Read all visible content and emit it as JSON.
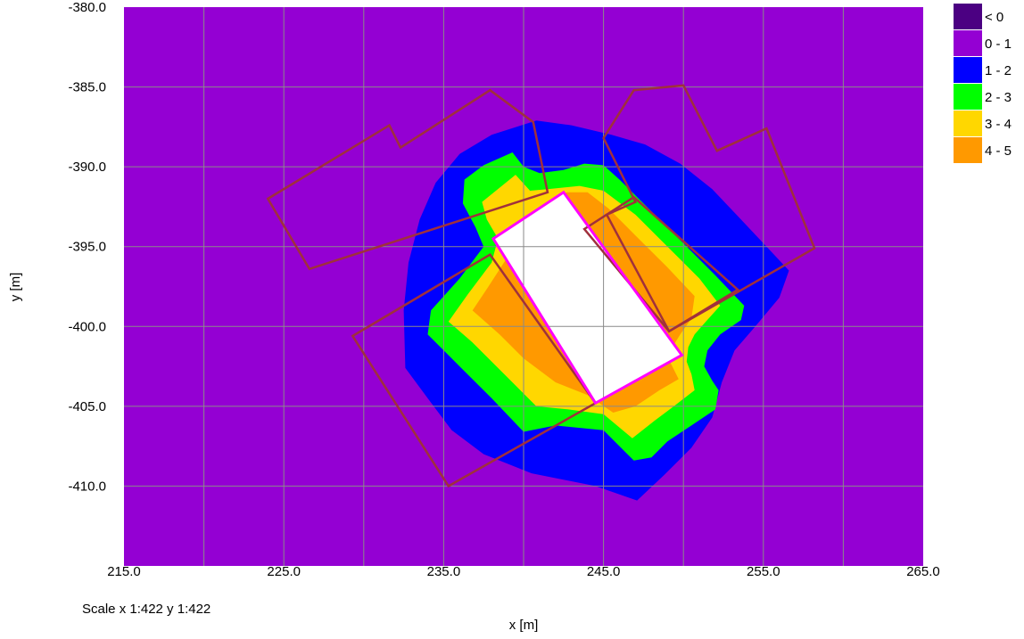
{
  "chart_data": {
    "type": "heatmap",
    "xlabel": "x [m]",
    "ylabel": "y [m]",
    "xlim": [
      215,
      265
    ],
    "ylim": [
      -415,
      -380
    ],
    "x_ticks": [
      "215.0",
      "225.0",
      "235.0",
      "245.0",
      "255.0",
      "265.0"
    ],
    "y_ticks": [
      "-380.0",
      "-385.0",
      "-390.0",
      "-395.0",
      "-400.0",
      "-405.0",
      "-410.0"
    ],
    "grid": true,
    "scale_note": "Scale x 1:422  y 1:422",
    "legend": [
      {
        "label": "< 0",
        "color": "#4b0082"
      },
      {
        "label": "0 - 1",
        "color": "#9400d3"
      },
      {
        "label": "1 - 2",
        "color": "#0000ff"
      },
      {
        "label": "2 - 3",
        "color": "#00ff00"
      },
      {
        "label": "3 - 4",
        "color": "#ffd700"
      },
      {
        "label": "4 - 5",
        "color": "#ff9900"
      }
    ],
    "background_color": "#9400d3",
    "zones": [
      {
        "label": "1 - 2",
        "color": "#0000ff",
        "points": [
          [
            240.8,
            -387.1
          ],
          [
            243.0,
            -387.4
          ],
          [
            245.5,
            -388.0
          ],
          [
            247.6,
            -388.6
          ],
          [
            249.8,
            -389.8
          ],
          [
            251.8,
            -391.4
          ],
          [
            253.6,
            -393.3
          ],
          [
            255.2,
            -395.0
          ],
          [
            256.6,
            -396.5
          ],
          [
            256.0,
            -398.2
          ],
          [
            254.5,
            -400.0
          ],
          [
            253.2,
            -401.5
          ],
          [
            252.4,
            -403.5
          ],
          [
            251.8,
            -405.7
          ],
          [
            250.5,
            -407.6
          ],
          [
            248.8,
            -409.3
          ],
          [
            247.1,
            -410.9
          ],
          [
            244.5,
            -410.0
          ],
          [
            240.5,
            -409.2
          ],
          [
            237.5,
            -408.0
          ],
          [
            235.5,
            -406.5
          ],
          [
            234.0,
            -404.5
          ],
          [
            232.6,
            -402.6
          ],
          [
            232.5,
            -399.0
          ],
          [
            232.8,
            -396.0
          ],
          [
            233.5,
            -393.3
          ],
          [
            234.5,
            -391.0
          ],
          [
            236.0,
            -389.2
          ],
          [
            238.0,
            -388.0
          ]
        ]
      },
      {
        "label": "2 - 3",
        "color": "#00ff00",
        "points": [
          [
            239.3,
            -389.1
          ],
          [
            240.0,
            -390.0
          ],
          [
            241.0,
            -390.4
          ],
          [
            242.5,
            -390.2
          ],
          [
            243.8,
            -389.8
          ],
          [
            245.0,
            -389.9
          ],
          [
            246.0,
            -390.8
          ],
          [
            248.0,
            -392.8
          ],
          [
            250.0,
            -394.8
          ],
          [
            252.0,
            -396.8
          ],
          [
            253.8,
            -398.7
          ],
          [
            253.6,
            -399.6
          ],
          [
            252.3,
            -400.5
          ],
          [
            251.5,
            -401.5
          ],
          [
            251.3,
            -402.5
          ],
          [
            251.8,
            -403.4
          ],
          [
            252.2,
            -404.0
          ],
          [
            252.0,
            -405.2
          ],
          [
            250.5,
            -406.2
          ],
          [
            249.0,
            -407.2
          ],
          [
            248.0,
            -408.2
          ],
          [
            246.9,
            -408.4
          ],
          [
            245.0,
            -406.5
          ],
          [
            242.0,
            -406.2
          ],
          [
            240.0,
            -406.6
          ],
          [
            238.0,
            -404.5
          ],
          [
            236.0,
            -402.5
          ],
          [
            234.0,
            -400.5
          ],
          [
            234.2,
            -399.0
          ],
          [
            236.0,
            -397.0
          ],
          [
            237.5,
            -395.0
          ],
          [
            237.0,
            -393.8
          ],
          [
            236.2,
            -392.3
          ],
          [
            236.3,
            -390.8
          ],
          [
            237.5,
            -389.9
          ]
        ]
      },
      {
        "label": "3 - 4",
        "color": "#ffd700",
        "points": [
          [
            239.5,
            -390.5
          ],
          [
            240.4,
            -391.5
          ],
          [
            241.5,
            -391.4
          ],
          [
            243.5,
            -391.2
          ],
          [
            245.0,
            -391.5
          ],
          [
            247.0,
            -393.0
          ],
          [
            249.0,
            -395.0
          ],
          [
            251.0,
            -397.0
          ],
          [
            252.3,
            -398.7
          ],
          [
            251.4,
            -399.7
          ],
          [
            250.7,
            -400.5
          ],
          [
            250.3,
            -401.3
          ],
          [
            250.2,
            -402.2
          ],
          [
            250.5,
            -403.0
          ],
          [
            250.7,
            -404.0
          ],
          [
            249.4,
            -405.0
          ],
          [
            248.2,
            -405.9
          ],
          [
            246.8,
            -407.0
          ],
          [
            245.0,
            -405.5
          ],
          [
            242.8,
            -405.2
          ],
          [
            240.8,
            -405.0
          ],
          [
            238.8,
            -403.0
          ],
          [
            236.8,
            -401.0
          ],
          [
            235.3,
            -399.7
          ],
          [
            236.5,
            -398.0
          ],
          [
            238.0,
            -396.0
          ],
          [
            238.4,
            -394.5
          ],
          [
            237.7,
            -393.3
          ],
          [
            237.4,
            -392.2
          ]
        ]
      },
      {
        "label": "4 - 5",
        "color": "#ff9900",
        "points": [
          [
            242.7,
            -391.6
          ],
          [
            244.0,
            -391.6
          ],
          [
            245.3,
            -392.6
          ],
          [
            247.0,
            -394.3
          ],
          [
            249.0,
            -396.3
          ],
          [
            250.7,
            -398.1
          ],
          [
            250.5,
            -399.5
          ],
          [
            249.8,
            -400.5
          ],
          [
            249.3,
            -401.3
          ],
          [
            249.2,
            -402.3
          ],
          [
            249.7,
            -403.3
          ],
          [
            248.5,
            -404.0
          ],
          [
            247.0,
            -405.0
          ],
          [
            245.6,
            -405.4
          ],
          [
            244.0,
            -404.3
          ],
          [
            242.0,
            -403.5
          ],
          [
            240.0,
            -402.0
          ],
          [
            238.5,
            -400.5
          ],
          [
            236.8,
            -399.0
          ],
          [
            237.8,
            -397.5
          ],
          [
            238.9,
            -395.8
          ],
          [
            238.6,
            -394.6
          ],
          [
            240.5,
            -393.2
          ]
        ]
      }
    ],
    "building_footprint": [
      [
        242.5,
        -391.6
      ],
      [
        249.9,
        -401.8
      ],
      [
        244.5,
        -404.8
      ],
      [
        238.1,
        -394.5
      ]
    ],
    "outline_polygons": [
      [
        [
          224.0,
          -392.0
        ],
        [
          231.6,
          -387.4
        ],
        [
          232.3,
          -388.8
        ],
        [
          237.9,
          -385.2
        ],
        [
          240.6,
          -387.2
        ],
        [
          241.5,
          -391.6
        ],
        [
          226.6,
          -396.4
        ]
      ],
      [
        [
          245.0,
          -388.2
        ],
        [
          246.9,
          -385.2
        ],
        [
          250.0,
          -384.9
        ],
        [
          252.1,
          -389.0
        ],
        [
          255.2,
          -387.6
        ],
        [
          258.2,
          -395.1
        ],
        [
          249.1,
          -400.3
        ],
        [
          245.2,
          -393.0
        ],
        [
          247.0,
          -392.2
        ]
      ],
      [
        [
          229.3,
          -400.6
        ],
        [
          237.9,
          -395.5
        ],
        [
          244.5,
          -404.8
        ],
        [
          235.3,
          -410.0
        ]
      ],
      [
        [
          243.8,
          -393.9
        ],
        [
          246.9,
          -391.9
        ],
        [
          253.4,
          -397.7
        ],
        [
          249.1,
          -400.3
        ]
      ]
    ]
  }
}
